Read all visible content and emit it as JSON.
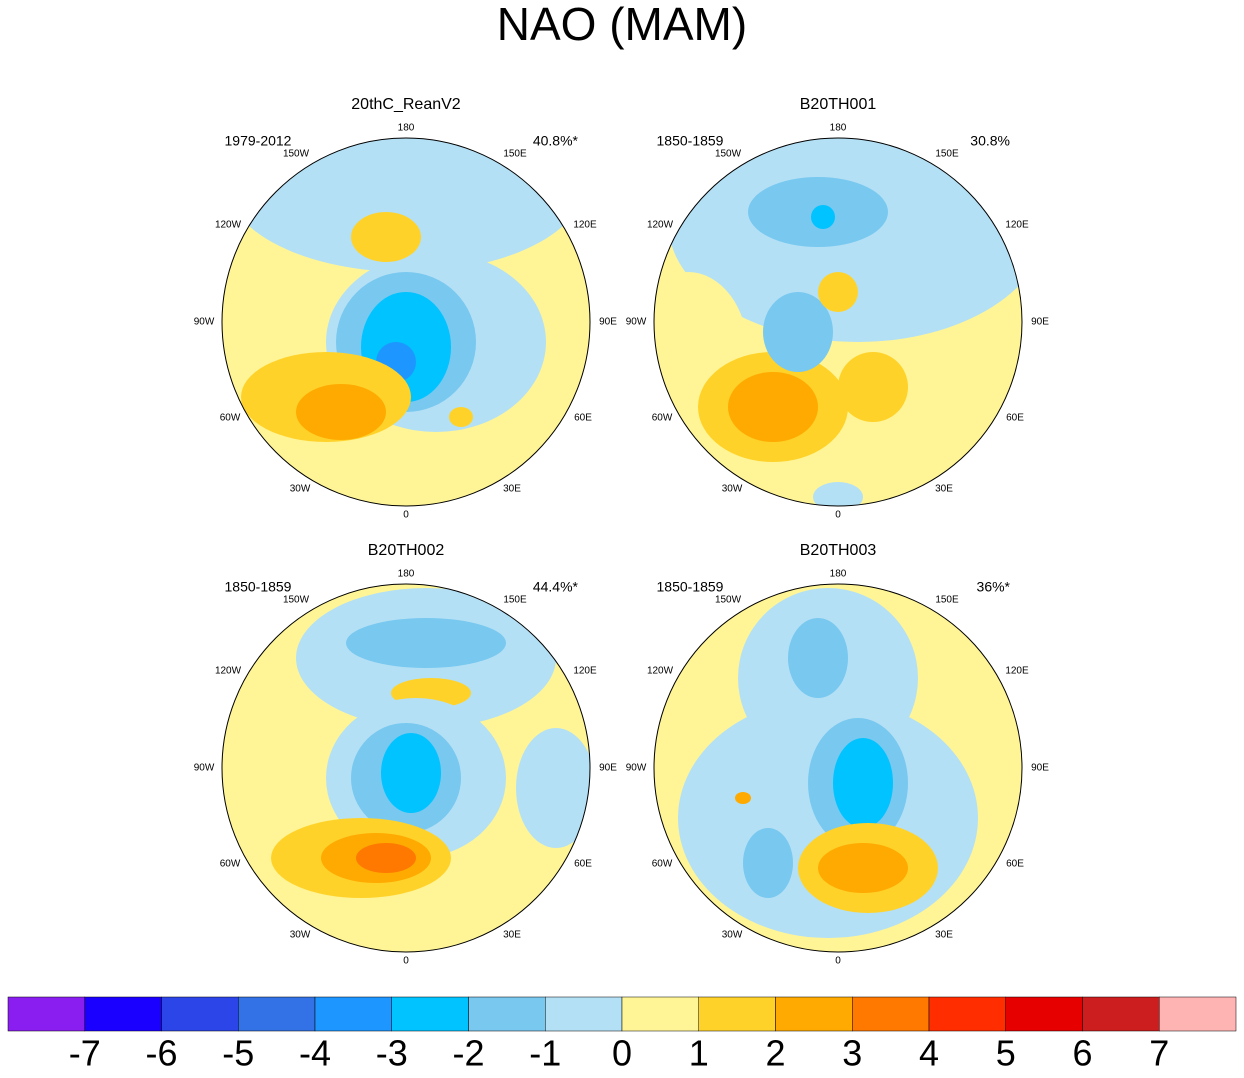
{
  "title": "NAO (MAM)",
  "panels": [
    {
      "title": "20thC_ReanV2",
      "period": "1979-2012",
      "variance": "40.8%*"
    },
    {
      "title": "B20TH001",
      "period": "1850-1859",
      "variance": "30.8%"
    },
    {
      "title": "B20TH002",
      "period": "1850-1859",
      "variance": "44.4%*"
    },
    {
      "title": "B20TH003",
      "period": "1850-1859",
      "variance": "36%*"
    }
  ],
  "longitude_labels": [
    "180",
    "150W",
    "150E",
    "120W",
    "120E",
    "90W",
    "90E",
    "60W",
    "60E",
    "30W",
    "30E",
    "0"
  ],
  "colorbar": {
    "colors": [
      "#8a1ef0",
      "#1a00ff",
      "#2c45e8",
      "#3372e6",
      "#1e96ff",
      "#00c3ff",
      "#78c8f0",
      "#b4e0f5",
      "#fff596",
      "#ffd22a",
      "#ffaa00",
      "#ff7800",
      "#ff2d00",
      "#e60000",
      "#cc1e1e",
      "#ffb4b4"
    ],
    "ticks": [
      -7,
      -6,
      -5,
      -4,
      -3,
      -2,
      -1,
      0,
      1,
      2,
      3,
      4,
      5,
      6,
      7
    ]
  }
}
